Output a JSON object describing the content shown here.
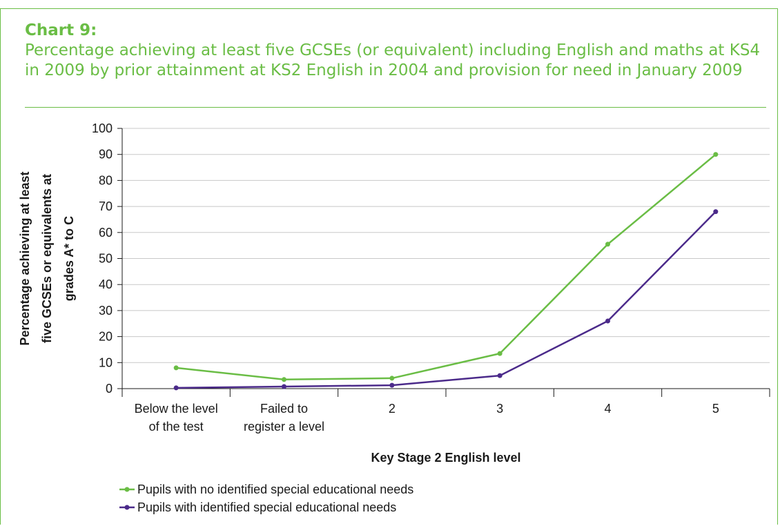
{
  "heading": {
    "chart_number": "Chart 9:",
    "title": "Percentage achieving at least five GCSEs (or equivalent) including English and maths at KS4 in 2009 by prior attainment at KS2 English in 2004 and provision for need in January 2009"
  },
  "colors": {
    "accent": "#6abd45",
    "series_no_sen": "#6abd45",
    "series_sen": "#4b2a8a",
    "gridline": "#c8c8c8",
    "axis": "#1a1a1a"
  },
  "chart_data": {
    "type": "line",
    "title": "Percentage achieving at least five GCSEs (or equivalent) including English and maths at KS4 in 2009 by prior attainment at KS2 English in 2004 and provision for need in January 2009",
    "categories": [
      [
        "Below the level",
        "of the test"
      ],
      [
        "Failed to",
        "register a level"
      ],
      [
        "2"
      ],
      [
        "3"
      ],
      [
        "4"
      ],
      [
        "5"
      ]
    ],
    "series": [
      {
        "name": "Pupils with no identified special educational needs",
        "values": [
          8,
          3.5,
          4,
          13.5,
          55.5,
          90
        ]
      },
      {
        "name": "Pupils with identified special educational needs",
        "values": [
          0.3,
          0.8,
          1.3,
          5,
          26,
          68
        ]
      }
    ],
    "xlabel": "Key Stage 2 English level",
    "ylabel": [
      "Percentage achieving at least",
      "five GCSEs or equivalents at",
      "grades A* to C"
    ],
    "ylim": [
      0,
      100
    ],
    "yticks": [
      0,
      10,
      20,
      30,
      40,
      50,
      60,
      70,
      80,
      90,
      100
    ],
    "grid": true,
    "legend_position": "bottom-left"
  }
}
